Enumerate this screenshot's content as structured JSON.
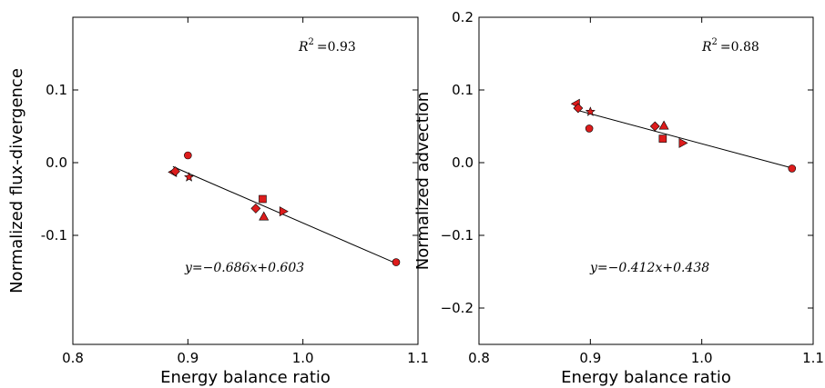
{
  "chart_data": [
    {
      "type": "scatter",
      "xlabel": "Energy balance ratio",
      "ylabel": "Normalized flux-divergence",
      "xlim": [
        0.8,
        1.1
      ],
      "ylim": [
        -0.25,
        0.2
      ],
      "xticks": [
        "0.8",
        "0.9",
        "1.0",
        "1.1"
      ],
      "yticks": [
        {
          "v": 0.1,
          "label": "0.1"
        },
        {
          "v": 0.0,
          "label": "0.0"
        },
        {
          "v": -0.1,
          "label": "-0.1"
        }
      ],
      "r2_prefix": "R",
      "r2_exp": "2",
      "r2_value": "=0.93",
      "equation_text": "y=−0.686x+0.603",
      "fit": {
        "slope": -0.686,
        "intercept": 0.603,
        "x_range": [
          0.887,
          1.081
        ]
      },
      "marker_color": "#dd1c1c",
      "points": [
        {
          "x": 0.887,
          "y": -0.013,
          "marker": "triangle-left"
        },
        {
          "x": 0.889,
          "y": -0.012,
          "marker": "diamond"
        },
        {
          "x": 0.9,
          "y": 0.01,
          "marker": "circle"
        },
        {
          "x": 0.901,
          "y": -0.02,
          "marker": "star"
        },
        {
          "x": 0.959,
          "y": -0.063,
          "marker": "diamond"
        },
        {
          "x": 0.965,
          "y": -0.05,
          "marker": "square"
        },
        {
          "x": 0.966,
          "y": -0.074,
          "marker": "triangle-up"
        },
        {
          "x": 0.983,
          "y": -0.067,
          "marker": "triangle-right"
        },
        {
          "x": 1.081,
          "y": -0.137,
          "marker": "circle"
        }
      ]
    },
    {
      "type": "scatter",
      "xlabel": "Energy balance ratio",
      "ylabel": "Normalized advection",
      "xlim": [
        0.8,
        1.1
      ],
      "ylim": [
        -0.25,
        0.2
      ],
      "xticks": [
        "0.8",
        "0.9",
        "1.0",
        "1.1"
      ],
      "yticks": [
        {
          "v": 0.2,
          "label": "0.2"
        },
        {
          "v": 0.1,
          "label": "0.1"
        },
        {
          "v": 0.0,
          "label": "0.0"
        },
        {
          "v": -0.1,
          "label": "−0.1"
        },
        {
          "v": -0.2,
          "label": "−0.2"
        }
      ],
      "r2_prefix": "R",
      "r2_exp": "2",
      "r2_value": "=0.88",
      "equation_text": "y=−0.412x+0.438",
      "fit": {
        "slope": -0.412,
        "intercept": 0.438,
        "x_range": [
          0.887,
          1.081
        ]
      },
      "marker_color": "#dd1c1c",
      "points": [
        {
          "x": 0.887,
          "y": 0.081,
          "marker": "triangle-left"
        },
        {
          "x": 0.889,
          "y": 0.075,
          "marker": "diamond"
        },
        {
          "x": 0.899,
          "y": 0.047,
          "marker": "circle"
        },
        {
          "x": 0.9,
          "y": 0.07,
          "marker": "star"
        },
        {
          "x": 0.958,
          "y": 0.05,
          "marker": "diamond"
        },
        {
          "x": 0.966,
          "y": 0.051,
          "marker": "triangle-up"
        },
        {
          "x": 0.965,
          "y": 0.033,
          "marker": "square"
        },
        {
          "x": 0.983,
          "y": 0.027,
          "marker": "triangle-right"
        },
        {
          "x": 1.081,
          "y": -0.008,
          "marker": "circle"
        }
      ]
    }
  ]
}
